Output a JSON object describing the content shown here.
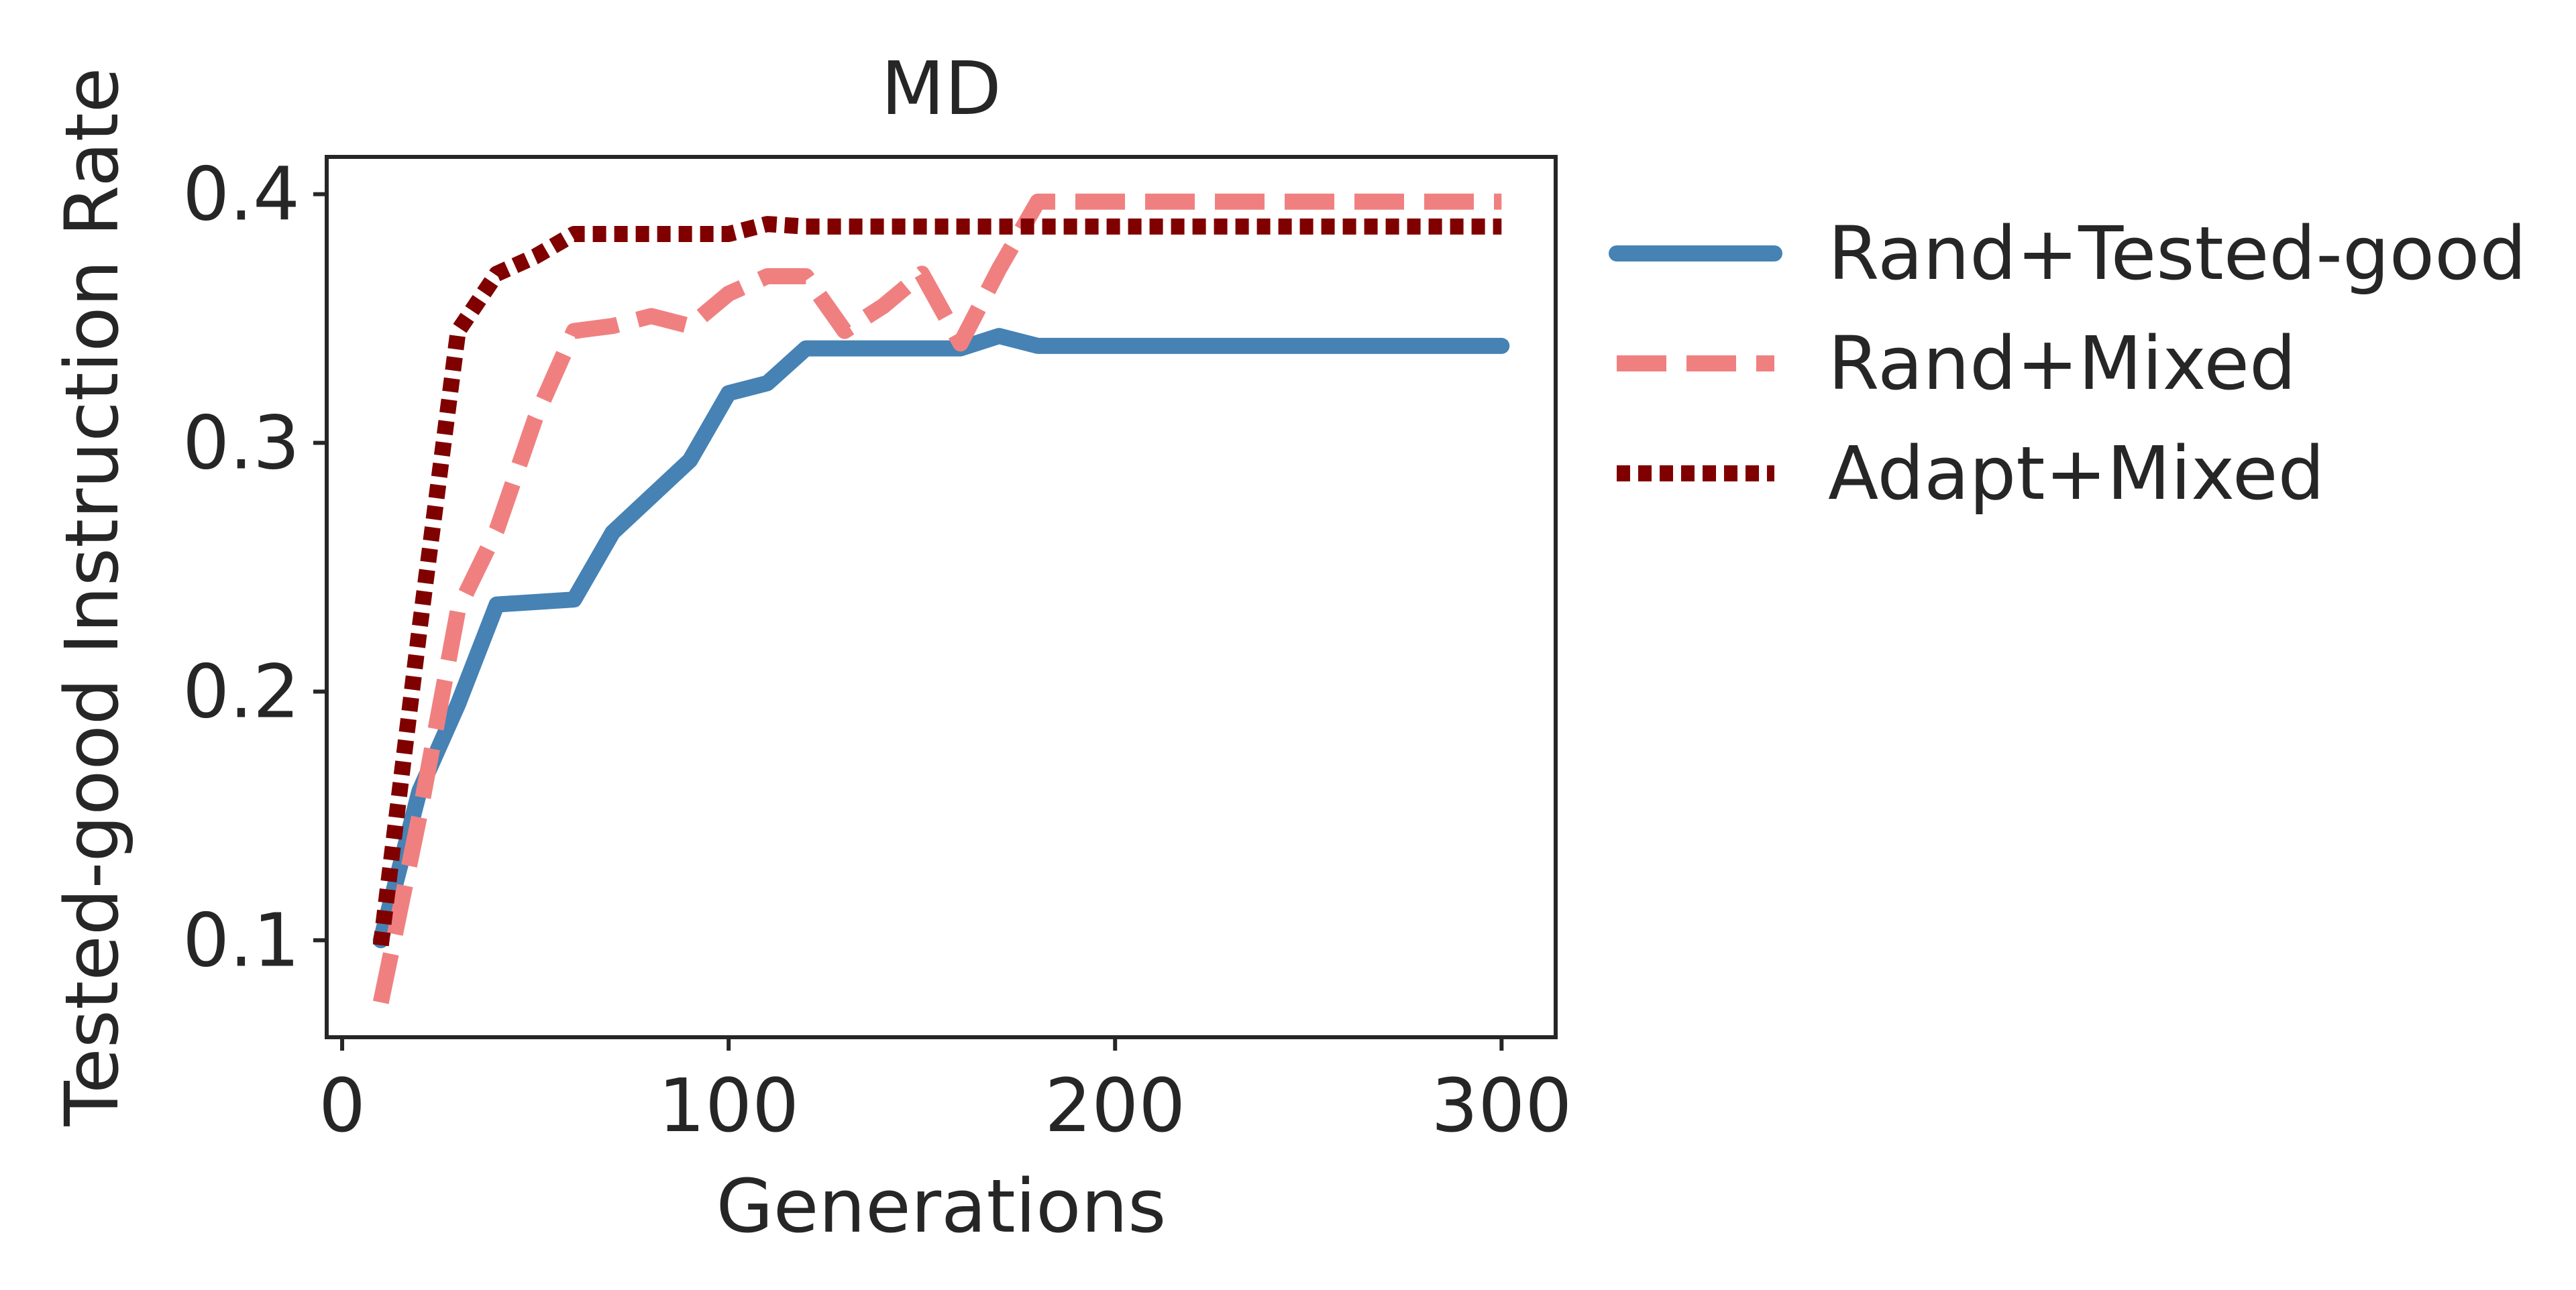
{
  "chart_data": {
    "type": "line",
    "title": "MD",
    "xlabel": "Generations",
    "ylabel": "Tested-good Instruction Rate",
    "xlim": [
      -4,
      314
    ],
    "ylim": [
      0.061,
      0.415
    ],
    "xticks": [
      0,
      100,
      200,
      300
    ],
    "xtick_labels": [
      "0",
      "100",
      "200",
      "300"
    ],
    "yticks": [
      0.1,
      0.2,
      0.3,
      0.4
    ],
    "ytick_labels": [
      "0.1",
      "0.2",
      "0.3",
      "0.4"
    ],
    "grid": false,
    "legend_position": "outside right, top",
    "series": [
      {
        "name": "Rand+Tested-good",
        "color": "#4682b4",
        "style": "solid",
        "x": [
          10,
          20,
          30,
          40,
          60,
          70,
          90,
          100,
          110,
          120,
          130,
          140,
          150,
          160,
          170,
          180,
          190,
          200,
          210,
          220,
          230,
          240,
          250,
          260,
          270,
          280,
          290,
          300
        ],
        "y": [
          0.1,
          0.16,
          0.195,
          0.235,
          0.237,
          0.264,
          0.293,
          0.32,
          0.324,
          0.338,
          0.338,
          0.338,
          0.338,
          0.338,
          0.343,
          0.339,
          0.339,
          0.339,
          0.339,
          0.339,
          0.339,
          0.339,
          0.339,
          0.339,
          0.339,
          0.339,
          0.339,
          0.339
        ]
      },
      {
        "name": "Rand+Mixed",
        "color": "#f08080",
        "style": "dashed",
        "x": [
          10,
          20,
          30,
          40,
          50,
          60,
          70,
          80,
          90,
          100,
          110,
          120,
          130,
          140,
          150,
          160,
          170,
          180,
          190,
          200,
          210,
          220,
          230,
          240,
          250,
          260,
          270,
          280,
          290,
          300
        ],
        "y": [
          0.075,
          0.15,
          0.233,
          0.265,
          0.31,
          0.345,
          0.347,
          0.351,
          0.347,
          0.36,
          0.367,
          0.367,
          0.345,
          0.355,
          0.368,
          0.34,
          0.37,
          0.397,
          0.397,
          0.397,
          0.397,
          0.397,
          0.397,
          0.397,
          0.397,
          0.397,
          0.397,
          0.397,
          0.397,
          0.397
        ]
      },
      {
        "name": "Adapt+Mixed",
        "color": "#800000",
        "style": "dotted",
        "x": [
          10,
          20,
          30,
          40,
          50,
          60,
          70,
          80,
          90,
          100,
          110,
          120,
          130,
          140,
          150,
          160,
          170,
          180,
          190,
          200,
          210,
          220,
          230,
          240,
          250,
          260,
          270,
          280,
          290,
          300
        ],
        "y": [
          0.098,
          0.225,
          0.345,
          0.368,
          0.375,
          0.384,
          0.384,
          0.384,
          0.384,
          0.384,
          0.388,
          0.387,
          0.387,
          0.387,
          0.387,
          0.387,
          0.387,
          0.387,
          0.387,
          0.387,
          0.387,
          0.387,
          0.387,
          0.387,
          0.387,
          0.387,
          0.387,
          0.387,
          0.387,
          0.387
        ]
      }
    ]
  }
}
